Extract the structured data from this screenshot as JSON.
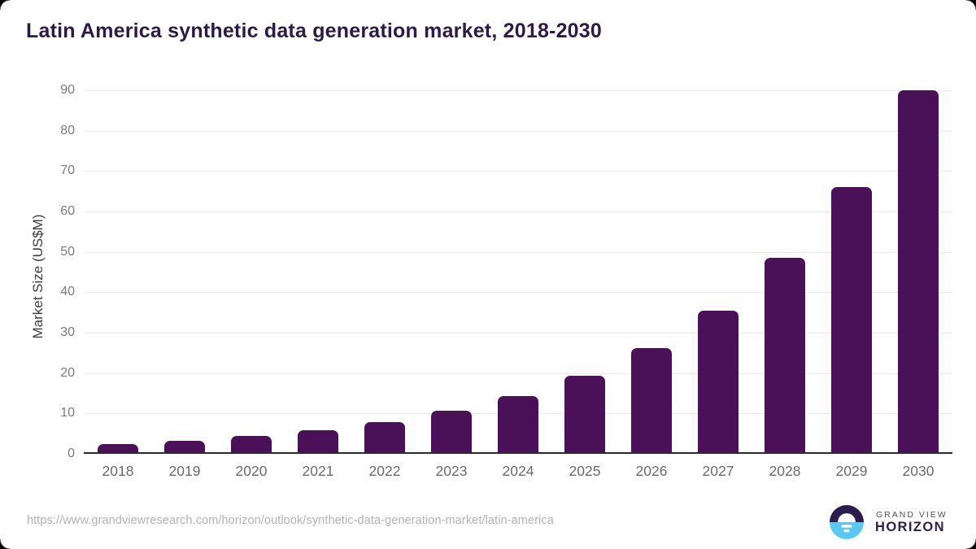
{
  "title": "Latin America synthetic data generation market, 2018-2030",
  "chart_data": {
    "type": "bar",
    "title": "Latin America synthetic data generation market, 2018-2030",
    "categories": [
      "2018",
      "2019",
      "2020",
      "2021",
      "2022",
      "2023",
      "2024",
      "2025",
      "2026",
      "2027",
      "2028",
      "2029",
      "2030"
    ],
    "values": [
      2.5,
      3.3,
      4.5,
      5.9,
      7.9,
      10.6,
      14.3,
      19.4,
      26.2,
      35.5,
      48.5,
      66.0,
      90.0
    ],
    "xlabel": "",
    "ylabel": "Market Size (US$M)",
    "ylim": [
      0,
      90
    ],
    "yticks": [
      0,
      10,
      20,
      30,
      40,
      50,
      60,
      70,
      80,
      90
    ],
    "grid": "horizontal gridlines on",
    "legend_position": "none",
    "bar_color": "#4a1158"
  },
  "colors": {
    "title": "#2e1a47",
    "bar": "#4a1158",
    "gridline": "#e9e9e9",
    "axis_line": "#2b2b2b",
    "tick_label": "#7b7b7b",
    "x_label": "#6b6b6b",
    "url_text": "#b3b3b3",
    "logo_navy": "#2b1d4e",
    "logo_blue": "#5ac8f5",
    "logo_horizon_text": "#2e2150"
  },
  "footer": {
    "source_url": "https://www.grandviewresearch.com/horizon/outlook/synthetic-data-generation-market/latin-america",
    "logo_line1": "GRAND VIEW",
    "logo_line2": "HORIZON"
  }
}
